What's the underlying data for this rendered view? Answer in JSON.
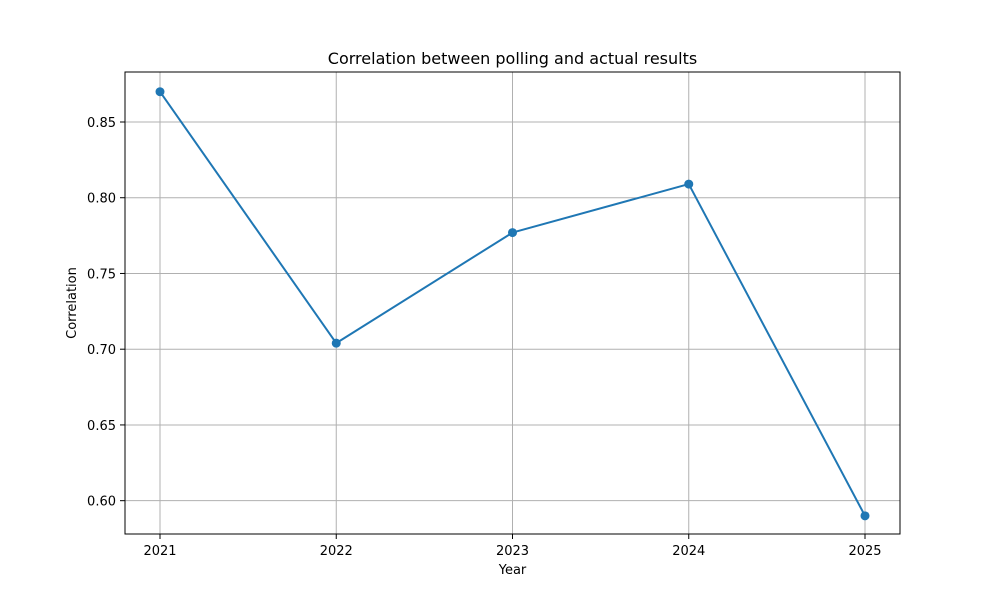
{
  "chart_data": {
    "type": "line",
    "title": "Correlation between polling and actual results",
    "xlabel": "Year",
    "ylabel": "Correlation",
    "categories": [
      "2021",
      "2022",
      "2023",
      "2024",
      "2025"
    ],
    "series": [
      {
        "values": [
          0.87,
          0.704,
          0.777,
          0.809,
          0.59
        ]
      }
    ],
    "ylim": [
      0.578,
      0.883
    ],
    "yticks": [
      0.6,
      0.65,
      0.7,
      0.75,
      0.8,
      0.85
    ],
    "ytick_labels": [
      "0.60",
      "0.65",
      "0.70",
      "0.75",
      "0.80",
      "0.85"
    ],
    "grid": true,
    "marker": "circle",
    "colors": {
      "series": "#1f77b4",
      "grid": "#b0b0b0",
      "axis": "#000000"
    }
  }
}
